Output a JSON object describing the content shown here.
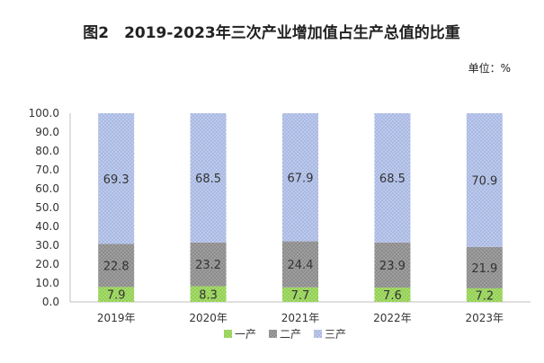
{
  "title": "图2　2019-2023年三次产业增加值占生产总值的比重",
  "unit_label": "单位：%",
  "colors": {
    "primary": "#92d050",
    "secondary": "#8c8c8c",
    "tertiary": "#a9b9e4",
    "axis": "#bfbfbf",
    "text": "#333333"
  },
  "chart_data": {
    "type": "bar",
    "stacked": true,
    "categories": [
      "2019年",
      "2020年",
      "2021年",
      "2022年",
      "2023年"
    ],
    "series": [
      {
        "name": "一产",
        "values": [
          7.9,
          8.3,
          7.7,
          7.6,
          7.2
        ]
      },
      {
        "name": "二产",
        "values": [
          22.8,
          23.2,
          24.4,
          23.9,
          21.9
        ]
      },
      {
        "name": "三产",
        "values": [
          69.3,
          68.5,
          67.9,
          68.5,
          70.9
        ]
      }
    ],
    "value_labels": [
      [
        "7.9",
        "8.3",
        "7.7",
        "7.6",
        "7.2"
      ],
      [
        "22.8",
        "23.2",
        "24.4",
        "23.9",
        "21.9"
      ],
      [
        "69.3",
        "68.5",
        "67.9",
        "68.5",
        "70.9"
      ]
    ],
    "y_ticks": [
      "0.0",
      "10.0",
      "20.0",
      "30.0",
      "40.0",
      "50.0",
      "60.0",
      "70.0",
      "80.0",
      "90.0",
      "100.0"
    ],
    "ylim": [
      0,
      100
    ],
    "grid": false,
    "legend_position": "bottom"
  }
}
